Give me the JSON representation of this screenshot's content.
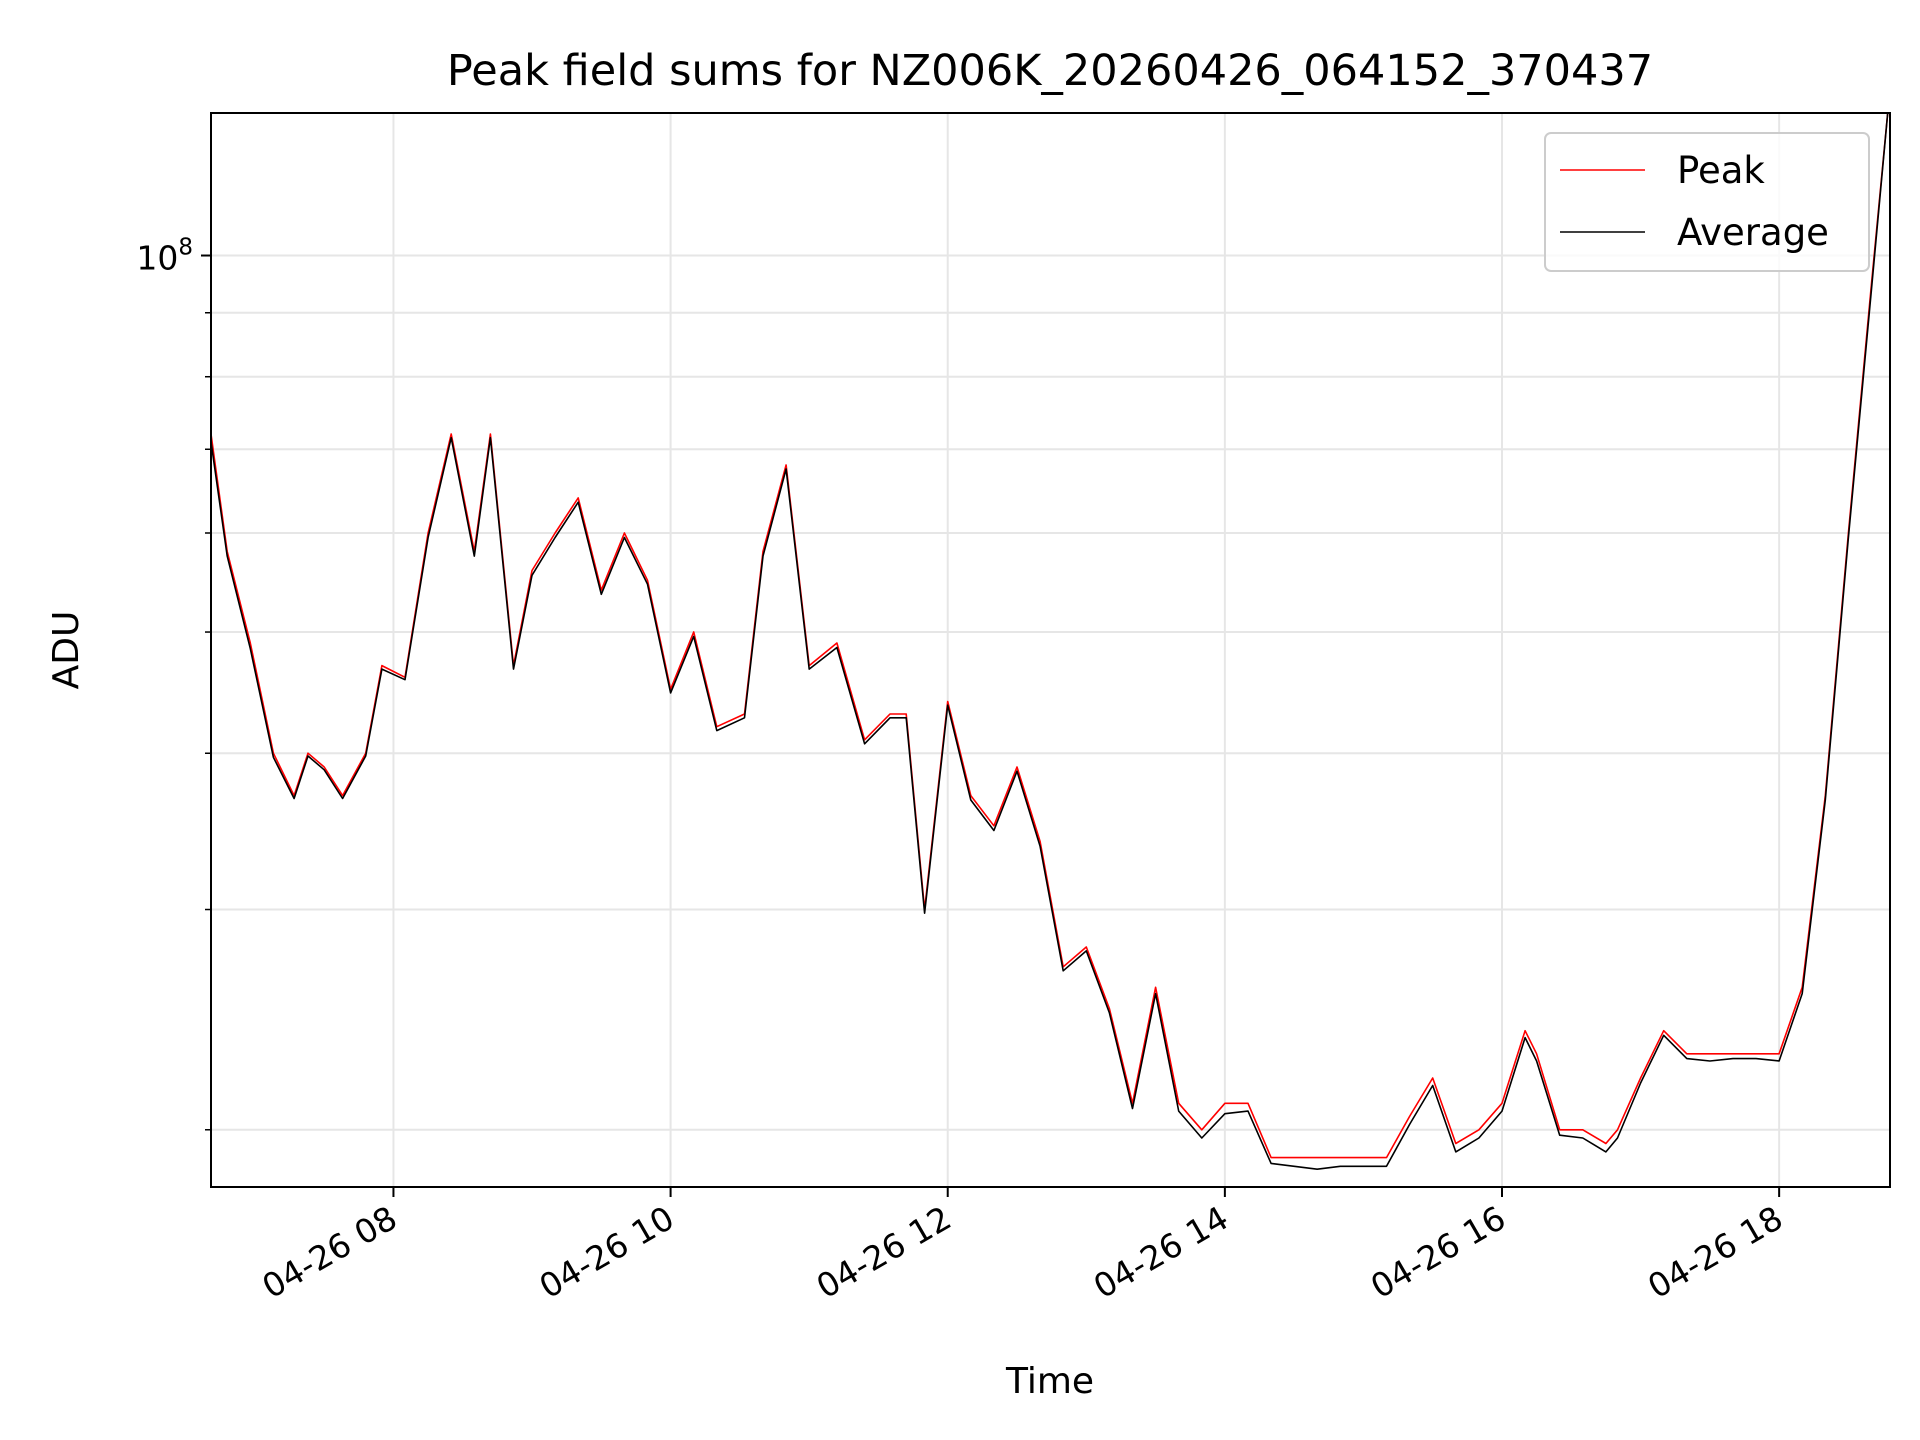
{
  "chart_data": {
    "type": "line",
    "title": "Peak field sums for NZ006K_20260426_064152_370437",
    "xlabel": "Time",
    "ylabel": "ADU",
    "yscale": "log",
    "grid": true,
    "legend_position": "top-right",
    "xlim": [
      "2026-04-26 06:41",
      "2026-04-26 18:48"
    ],
    "ylim": [
      18000000,
      130000000
    ],
    "x_ticks": [
      {
        "value": "2026-04-26 08:00",
        "label": "04-26 08"
      },
      {
        "value": "2026-04-26 10:00",
        "label": "04-26 10"
      },
      {
        "value": "2026-04-26 12:00",
        "label": "04-26 12"
      },
      {
        "value": "2026-04-26 14:00",
        "label": "04-26 14"
      },
      {
        "value": "2026-04-26 16:00",
        "label": "04-26 16"
      },
      {
        "value": "2026-04-26 18:00",
        "label": "04-26 18"
      }
    ],
    "y_ticks": [
      {
        "value": 100000000,
        "base": "10",
        "exp": "8"
      }
    ],
    "y_minor_ticks": [
      20000000,
      30000000,
      40000000,
      50000000,
      60000000,
      70000000,
      80000000,
      90000000
    ],
    "x": [
      "2026-04-26 06:41",
      "2026-04-26 06:48",
      "2026-04-26 06:58",
      "2026-04-26 07:08",
      "2026-04-26 07:17",
      "2026-04-26 07:23",
      "2026-04-26 07:30",
      "2026-04-26 07:38",
      "2026-04-26 07:48",
      "2026-04-26 07:55",
      "2026-04-26 08:05",
      "2026-04-26 08:15",
      "2026-04-26 08:25",
      "2026-04-26 08:35",
      "2026-04-26 08:42",
      "2026-04-26 08:52",
      "2026-04-26 09:00",
      "2026-04-26 09:10",
      "2026-04-26 09:20",
      "2026-04-26 09:30",
      "2026-04-26 09:40",
      "2026-04-26 09:50",
      "2026-04-26 10:00",
      "2026-04-26 10:10",
      "2026-04-26 10:20",
      "2026-04-26 10:32",
      "2026-04-26 10:40",
      "2026-04-26 10:50",
      "2026-04-26 11:00",
      "2026-04-26 11:12",
      "2026-04-26 11:24",
      "2026-04-26 11:35",
      "2026-04-26 11:42",
      "2026-04-26 11:50",
      "2026-04-26 12:00",
      "2026-04-26 12:10",
      "2026-04-26 12:20",
      "2026-04-26 12:30",
      "2026-04-26 12:40",
      "2026-04-26 12:50",
      "2026-04-26 13:00",
      "2026-04-26 13:10",
      "2026-04-26 13:20",
      "2026-04-26 13:30",
      "2026-04-26 13:40",
      "2026-04-26 13:50",
      "2026-04-26 14:00",
      "2026-04-26 14:10",
      "2026-04-26 14:20",
      "2026-04-26 14:30",
      "2026-04-26 14:40",
      "2026-04-26 14:50",
      "2026-04-26 15:00",
      "2026-04-26 15:10",
      "2026-04-26 15:20",
      "2026-04-26 15:30",
      "2026-04-26 15:40",
      "2026-04-26 15:50",
      "2026-04-26 16:00",
      "2026-04-26 16:10",
      "2026-04-26 16:15",
      "2026-04-26 16:25",
      "2026-04-26 16:35",
      "2026-04-26 16:45",
      "2026-04-26 16:50",
      "2026-04-26 17:00",
      "2026-04-26 17:10",
      "2026-04-26 17:20",
      "2026-04-26 17:30",
      "2026-04-26 17:40",
      "2026-04-26 17:50",
      "2026-04-26 18:00",
      "2026-04-26 18:10",
      "2026-04-26 18:20",
      "2026-04-26 18:30",
      "2026-04-26 18:40",
      "2026-04-26 18:47"
    ],
    "series": [
      {
        "name": "Peak",
        "color": "#ff0000",
        "values": [
          72000000,
          58000000,
          49000000,
          40000000,
          37000000,
          40000000,
          39000000,
          37000000,
          40000000,
          47000000,
          46000000,
          60000000,
          72000000,
          58000000,
          72000000,
          47000000,
          56000000,
          60000000,
          64000000,
          54000000,
          60000000,
          55000000,
          45000000,
          50000000,
          42000000,
          43000000,
          58000000,
          68000000,
          47000000,
          49000000,
          41000000,
          43000000,
          43000000,
          30000000,
          44000000,
          37000000,
          35000000,
          39000000,
          34000000,
          27000000,
          28000000,
          25000000,
          21000000,
          26000000,
          21000000,
          20000000,
          21000000,
          21000000,
          19000000,
          19000000,
          19000000,
          19000000,
          19000000,
          19000000,
          20500000,
          22000000,
          19500000,
          20000000,
          21000000,
          24000000,
          23000000,
          20000000,
          20000000,
          19500000,
          20000000,
          22000000,
          24000000,
          23000000,
          23000000,
          23000000,
          23000000,
          23000000,
          26000000,
          37000000,
          60000000,
          95000000,
          130000000
        ]
      },
      {
        "name": "Average",
        "color": "#000000",
        "values": [
          71000000,
          57500000,
          48500000,
          39700000,
          36800000,
          39800000,
          38800000,
          36800000,
          39800000,
          46700000,
          45800000,
          59500000,
          71500000,
          57500000,
          71500000,
          46700000,
          55500000,
          59500000,
          63500000,
          53600000,
          59500000,
          54600000,
          44700000,
          49600000,
          41700000,
          42700000,
          57500000,
          67500000,
          46700000,
          48600000,
          40700000,
          42700000,
          42700000,
          29800000,
          43700000,
          36700000,
          34700000,
          38700000,
          33700000,
          26800000,
          27800000,
          24800000,
          20800000,
          25700000,
          20700000,
          19700000,
          20600000,
          20700000,
          18800000,
          18700000,
          18600000,
          18700000,
          18700000,
          18700000,
          20200000,
          21700000,
          19200000,
          19700000,
          20700000,
          23700000,
          22700000,
          19800000,
          19700000,
          19200000,
          19700000,
          21800000,
          23800000,
          22800000,
          22700000,
          22800000,
          22800000,
          22700000,
          25700000,
          36700000,
          59500000,
          94000000,
          130000000
        ]
      }
    ]
  }
}
